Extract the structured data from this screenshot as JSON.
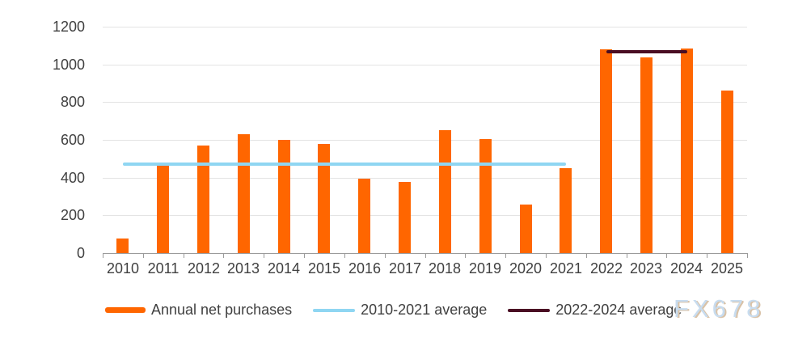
{
  "chart_data": {
    "type": "bar",
    "title": "",
    "categories": [
      "2010",
      "2011",
      "2012",
      "2013",
      "2014",
      "2015",
      "2016",
      "2017",
      "2018",
      "2019",
      "2020",
      "2021",
      "2022",
      "2023",
      "2024",
      "2025"
    ],
    "series": [
      {
        "name": "Annual net purchases",
        "color": "#ff6600",
        "values": [
          79,
          465,
          569,
          629,
          601,
          580,
          395,
          378,
          652,
          605,
          255,
          450,
          1080,
          1037,
          1086,
          860
        ]
      }
    ],
    "overlays": [
      {
        "name": "2010-2021 average",
        "type": "hline",
        "value": 472,
        "span": [
          "2010",
          "2021"
        ],
        "color": "#8fd6f2"
      },
      {
        "name": "2022-2024 average",
        "type": "hline",
        "value": 1068,
        "span": [
          "2022",
          "2024"
        ],
        "color": "#4a0d23"
      }
    ],
    "ylim": [
      0,
      1200
    ],
    "yticks": [
      0,
      200,
      400,
      600,
      800,
      1000,
      1200
    ],
    "xlabel": "",
    "ylabel": "",
    "grid": true,
    "legend_position": "bottom"
  },
  "legend": {
    "items": [
      {
        "label": "Annual net purchases",
        "swatch": "bar",
        "color": "#ff6600"
      },
      {
        "label": "2010-2021 average",
        "swatch": "line",
        "color": "#8fd6f2"
      },
      {
        "label": "2022-2024 average",
        "swatch": "line",
        "color": "#4a0d23"
      }
    ]
  },
  "watermark": {
    "text": "FX678"
  },
  "colors": {
    "bar": "#ff6600",
    "avg_2010_2021": "#8fd6f2",
    "avg_2022_2024": "#4a0d23",
    "gridline": "#e4e4e4",
    "axis": "#9b9b9b",
    "text": "#404040",
    "watermark_fill": "#c8dcef",
    "watermark_shadow": "#d9c2a7"
  }
}
